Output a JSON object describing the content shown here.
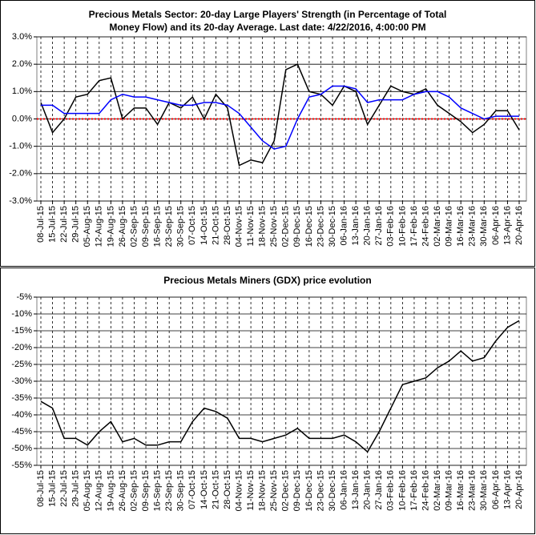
{
  "chart_data": [
    {
      "type": "line",
      "title": [
        "Precious Metals Sector: 20-day Large Players' Strength (in Percentage of Total",
        "Money Flow) and its 20-day Average. Last date: 4/22/2016, 4:00:00 PM"
      ],
      "categories": [
        "08-Jul-15",
        "15-Jul-15",
        "22-Jul-15",
        "29-Jul-15",
        "05-Aug-15",
        "12-Aug-15",
        "19-Aug-15",
        "26-Aug-15",
        "02-Sep-15",
        "09-Sep-15",
        "16-Sep-15",
        "23-Sep-15",
        "30-Sep-15",
        "07-Oct-15",
        "14-Oct-15",
        "21-Oct-15",
        "28-Oct-15",
        "04-Nov-15",
        "11-Nov-15",
        "18-Nov-15",
        "25-Nov-15",
        "02-Dec-15",
        "09-Dec-15",
        "16-Dec-15",
        "23-Dec-15",
        "30-Dec-15",
        "06-Jan-16",
        "13-Jan-16",
        "20-Jan-16",
        "27-Jan-16",
        "03-Feb-16",
        "10-Feb-16",
        "17-Feb-16",
        "24-Feb-16",
        "02-Mar-16",
        "09-Mar-16",
        "16-Mar-16",
        "23-Mar-16",
        "30-Mar-16",
        "06-Apr-16",
        "13-Apr-16",
        "20-Apr-16"
      ],
      "series": [
        {
          "color": "#000000",
          "values": [
            0.6,
            -0.5,
            0.0,
            0.8,
            0.9,
            1.4,
            1.5,
            0.0,
            0.4,
            0.4,
            -0.2,
            0.6,
            0.4,
            0.8,
            0.0,
            0.9,
            0.4,
            -1.7,
            -1.5,
            -1.6,
            -0.8,
            1.8,
            2.0,
            1.0,
            0.9,
            0.5,
            1.2,
            1.0,
            -0.2,
            0.5,
            1.2,
            1.0,
            0.9,
            1.1,
            0.5,
            0.2,
            -0.1,
            -0.5,
            -0.2,
            0.3,
            0.3,
            -0.4
          ]
        },
        {
          "color": "#0000ff",
          "values": [
            0.5,
            0.5,
            0.2,
            0.2,
            0.2,
            0.2,
            0.7,
            0.9,
            0.8,
            0.8,
            0.7,
            0.6,
            0.5,
            0.5,
            0.6,
            0.6,
            0.5,
            0.2,
            -0.3,
            -0.8,
            -1.1,
            -1.0,
            0.0,
            0.8,
            0.9,
            1.2,
            1.2,
            1.1,
            0.6,
            0.7,
            0.7,
            0.7,
            0.9,
            1.0,
            1.0,
            0.8,
            0.4,
            0.2,
            0.0,
            0.1,
            0.1,
            0.1
          ]
        }
      ],
      "reference_line": {
        "value": 0,
        "color": "#ff0000"
      },
      "ylim": [
        -3,
        3
      ],
      "yticks": [
        {
          "value": -3,
          "label": "-3.0%"
        },
        {
          "value": -2,
          "label": "-2.0%"
        },
        {
          "value": -1,
          "label": "-1.0%"
        },
        {
          "value": 0,
          "label": "0.0%"
        },
        {
          "value": 1,
          "label": "1.0%"
        },
        {
          "value": 2,
          "label": "2.0%"
        },
        {
          "value": 3,
          "label": "3.0%"
        }
      ],
      "grid": true
    },
    {
      "type": "line",
      "title": [
        "Precious Metals Miners (GDX) price evolution"
      ],
      "categories": [
        "08-Jul-15",
        "15-Jul-15",
        "22-Jul-15",
        "29-Jul-15",
        "05-Aug-15",
        "12-Aug-15",
        "19-Aug-15",
        "26-Aug-15",
        "02-Sep-15",
        "09-Sep-15",
        "16-Sep-15",
        "23-Sep-15",
        "30-Sep-15",
        "07-Oct-15",
        "14-Oct-15",
        "21-Oct-15",
        "28-Oct-15",
        "04-Nov-15",
        "11-Nov-15",
        "18-Nov-15",
        "25-Nov-15",
        "02-Dec-15",
        "09-Dec-15",
        "16-Dec-15",
        "23-Dec-15",
        "30-Dec-15",
        "06-Jan-16",
        "13-Jan-16",
        "20-Jan-16",
        "27-Jan-16",
        "03-Feb-16",
        "10-Feb-16",
        "17-Feb-16",
        "24-Feb-16",
        "02-Mar-16",
        "09-Mar-16",
        "16-Mar-16",
        "23-Mar-16",
        "30-Mar-16",
        "06-Apr-16",
        "13-Apr-16",
        "20-Apr-16"
      ],
      "series": [
        {
          "color": "#000000",
          "values": [
            -36,
            -38,
            -47,
            -47,
            -49,
            -45,
            -42,
            -48,
            -47,
            -49,
            -49,
            -48,
            -48,
            -42,
            -38,
            -39,
            -41,
            -47,
            -47,
            -48,
            -47,
            -46,
            -44,
            -47,
            -47,
            -47,
            -46,
            -48,
            -51,
            -45,
            -38,
            -31,
            -30,
            -29,
            -26,
            -24,
            -21,
            -24,
            -23,
            -18,
            -14,
            -12
          ]
        }
      ],
      "ylim": [
        -55,
        -5
      ],
      "yticks": [
        {
          "value": -55,
          "label": "-55%"
        },
        {
          "value": -50,
          "label": "-50%"
        },
        {
          "value": -45,
          "label": "-45%"
        },
        {
          "value": -40,
          "label": "-40%"
        },
        {
          "value": -35,
          "label": "-35%"
        },
        {
          "value": -30,
          "label": "-30%"
        },
        {
          "value": -25,
          "label": "-25%"
        },
        {
          "value": -20,
          "label": "-20%"
        },
        {
          "value": -15,
          "label": "-15%"
        },
        {
          "value": -10,
          "label": "-10%"
        },
        {
          "value": -5,
          "label": "-5%"
        }
      ],
      "grid": true
    }
  ]
}
